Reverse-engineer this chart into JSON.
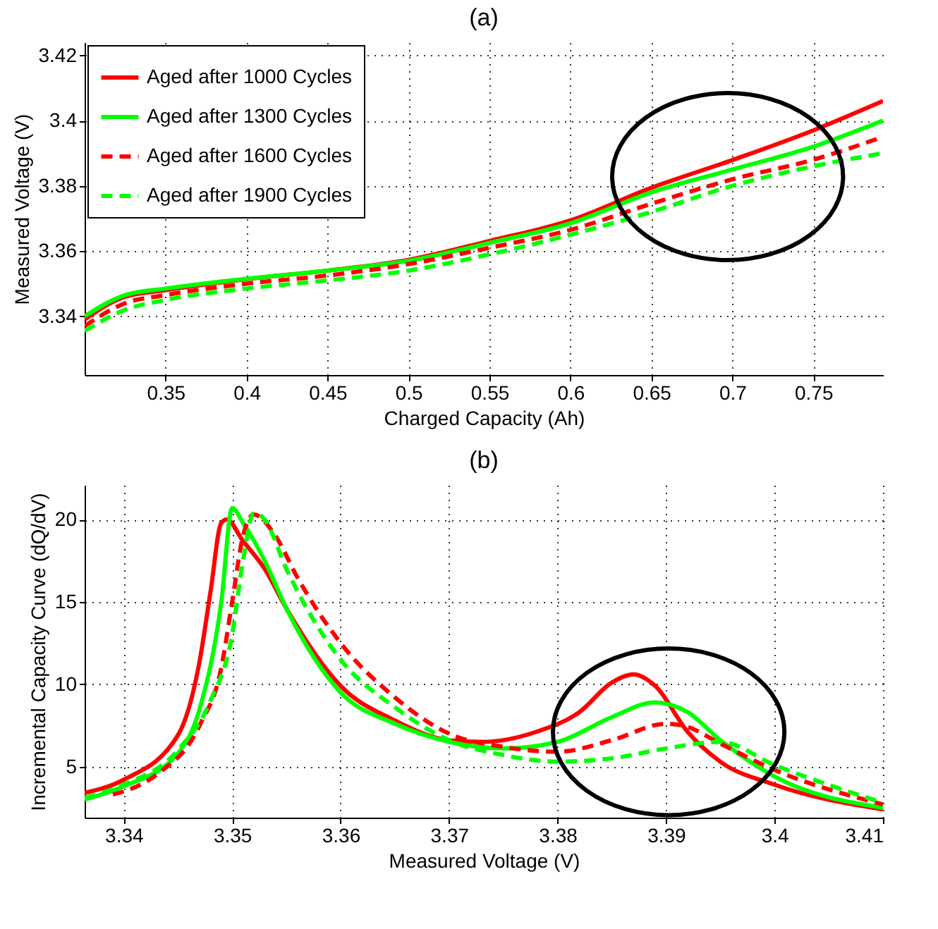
{
  "chart_data": [
    {
      "type": "line",
      "title": "(a)",
      "xlabel": "Charged Capacity (Ah)",
      "ylabel": "Measured Voltage (V)",
      "x": [
        0.3,
        0.325,
        0.35,
        0.4,
        0.45,
        0.5,
        0.55,
        0.6,
        0.65,
        0.7,
        0.75,
        0.793
      ],
      "series": [
        {
          "name": "Aged after 1000 Cycles",
          "color": "#ff0000",
          "line_style": "solid",
          "values": [
            3.339,
            3.346,
            3.348,
            3.3514,
            3.354,
            3.3573,
            3.3631,
            3.3694,
            3.3794,
            3.3879,
            3.397,
            3.406
          ]
        },
        {
          "name": "Aged after 1300 Cycles",
          "color": "#00ff00",
          "line_style": "solid",
          "values": [
            3.34,
            3.3465,
            3.3485,
            3.3515,
            3.354,
            3.357,
            3.3625,
            3.3685,
            3.378,
            3.385,
            3.392,
            3.4
          ]
        },
        {
          "name": "Aged after 1600 Cycles",
          "color": "#ff0000",
          "line_style": "dashed",
          "values": [
            3.337,
            3.344,
            3.3465,
            3.35,
            3.3525,
            3.356,
            3.361,
            3.3665,
            3.3745,
            3.382,
            3.388,
            3.395
          ]
        },
        {
          "name": "Aged after 1900 Cycles",
          "color": "#00ff00",
          "line_style": "dashed",
          "values": [
            3.3355,
            3.342,
            3.345,
            3.3485,
            3.351,
            3.354,
            3.359,
            3.365,
            3.372,
            3.38,
            3.386,
            3.39
          ]
        }
      ],
      "xlim": [
        0.3,
        0.793
      ],
      "ylim": [
        3.322,
        3.424
      ],
      "xticks": [
        0.35,
        0.4,
        0.45,
        0.5,
        0.55,
        0.6,
        0.65,
        0.7,
        0.75
      ],
      "yticks": [
        3.34,
        3.36,
        3.38,
        3.4,
        3.42
      ],
      "grid": true,
      "legend": "top left"
    },
    {
      "type": "line",
      "title": "(b)",
      "xlabel": "Measured Voltage (V)",
      "ylabel": "Incremental Capacity Curve (dQ/dV)",
      "series": [
        {
          "color": "#ff0000",
          "line_style": "solid",
          "x": [
            3.3364,
            3.34,
            3.345,
            3.347,
            3.348,
            3.349,
            3.3495,
            3.351,
            3.353,
            3.355,
            3.36,
            3.365,
            3.37,
            3.373,
            3.378,
            3.382,
            3.385,
            3.387,
            3.389,
            3.392,
            3.395,
            3.4,
            3.41
          ],
          "values": [
            3.4,
            4.2,
            6.9,
            11.4,
            15.6,
            19.8,
            20,
            18.7,
            17,
            14.6,
            9.9,
            7.8,
            6.6,
            6.5,
            7.1,
            8.3,
            10.1,
            10.6,
            9.9,
            7.1,
            5.3,
            3.9,
            2.4
          ]
        },
        {
          "color": "#00ff00",
          "line_style": "solid",
          "x": [
            3.3364,
            3.34,
            3.345,
            3.347,
            3.349,
            3.35,
            3.351,
            3.353,
            3.355,
            3.36,
            3.365,
            3.37,
            3.375,
            3.38,
            3.385,
            3.389,
            3.392,
            3.395,
            3.4,
            3.41
          ],
          "values": [
            3.0,
            3.8,
            5.8,
            8.5,
            15,
            20.7,
            19.8,
            17.5,
            14.6,
            9.5,
            7.6,
            6.5,
            6.1,
            6.5,
            8.0,
            8.9,
            8.3,
            6.6,
            4.4,
            2.5
          ]
        },
        {
          "color": "#ff0000",
          "line_style": "dashed",
          "x": [
            3.339,
            3.343,
            3.347,
            3.349,
            3.35,
            3.351,
            3.352,
            3.354,
            3.356,
            3.36,
            3.365,
            3.37,
            3.375,
            3.38,
            3.385,
            3.39,
            3.392,
            3.395,
            3.4,
            3.41
          ],
          "values": [
            3.3,
            4.5,
            7.5,
            11,
            15,
            19,
            20.3,
            19,
            16.5,
            12.5,
            9.2,
            7,
            6.2,
            5.9,
            6.6,
            7.6,
            7.4,
            6.4,
            4.8,
            2.7
          ]
        },
        {
          "color": "#00ff00",
          "line_style": "dashed",
          "x": [
            3.3364,
            3.34,
            3.345,
            3.348,
            3.35,
            3.351,
            3.352,
            3.353,
            3.355,
            3.36,
            3.365,
            3.37,
            3.375,
            3.38,
            3.385,
            3.39,
            3.395,
            3.4,
            3.41
          ],
          "values": [
            3.1,
            3.9,
            6,
            9,
            13,
            17.5,
            20.4,
            20,
            17,
            11.5,
            8.6,
            6.6,
            5.7,
            5.3,
            5.5,
            6.1,
            6.5,
            5.1,
            2.8
          ]
        }
      ],
      "xlim": [
        3.3364,
        3.41
      ],
      "ylim": [
        1.9,
        22.1
      ],
      "xticks": [
        3.34,
        3.35,
        3.36,
        3.37,
        3.38,
        3.39,
        3.4,
        3.41
      ],
      "yticks": [
        5,
        10,
        15,
        20
      ],
      "grid": true
    }
  ]
}
